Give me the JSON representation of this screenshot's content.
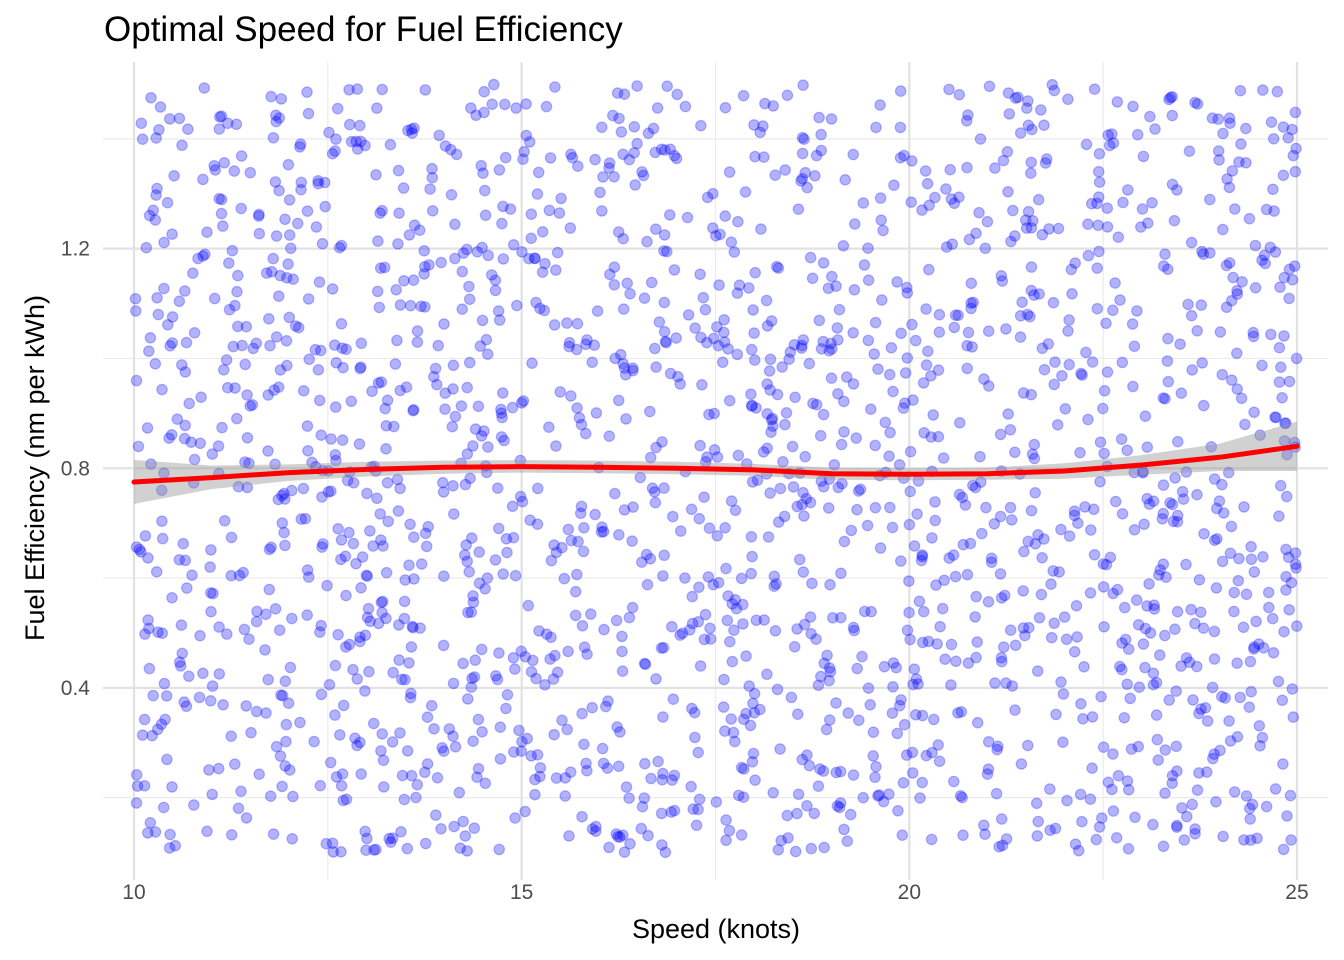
{
  "chart_data": {
    "type": "scatter",
    "title": "Optimal Speed for Fuel Efficiency",
    "xlabel": "Speed (knots)",
    "ylabel": "Fuel Efficiency (nm per kWh)",
    "xlim": [
      9.6,
      25.4
    ],
    "ylim": [
      0.05,
      1.54
    ],
    "x_ticks": [
      10,
      15,
      20,
      25
    ],
    "x_tick_labels": [
      "10",
      "15",
      "20",
      "25"
    ],
    "y_ticks": [
      0.4,
      0.8,
      1.2
    ],
    "y_tick_labels": [
      "0.4",
      "0.8",
      "1.2"
    ],
    "grid": true,
    "legend": "none",
    "point_color": "#0000FF",
    "point_alpha": 0.3,
    "point_count": 2000,
    "point_x_range": [
      10,
      25
    ],
    "point_y_range": [
      0.1,
      1.5
    ],
    "series": [
      {
        "kind": "smooth",
        "color": "#FF0000",
        "x": [
          10,
          11,
          12,
          13,
          14,
          15,
          16,
          17,
          18,
          19,
          20,
          21,
          22,
          23,
          24,
          25
        ],
        "y": [
          0.775,
          0.783,
          0.792,
          0.798,
          0.802,
          0.803,
          0.802,
          0.8,
          0.797,
          0.79,
          0.789,
          0.79,
          0.795,
          0.806,
          0.82,
          0.84
        ],
        "ci_low": [
          0.735,
          0.762,
          0.777,
          0.785,
          0.79,
          0.792,
          0.791,
          0.789,
          0.786,
          0.779,
          0.778,
          0.779,
          0.781,
          0.788,
          0.795,
          0.795
        ],
        "ci_high": [
          0.815,
          0.805,
          0.807,
          0.812,
          0.814,
          0.815,
          0.814,
          0.812,
          0.808,
          0.801,
          0.8,
          0.801,
          0.809,
          0.824,
          0.845,
          0.885
        ]
      }
    ]
  }
}
